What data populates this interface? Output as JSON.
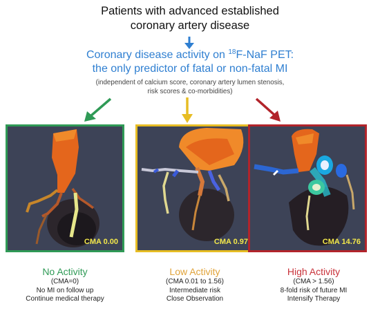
{
  "title": {
    "line1": "Patients with advanced established",
    "line2": "coronary artery disease"
  },
  "headline": {
    "line1_prefix": "Coronary disease activity on ",
    "isotope_mass": "18",
    "line1_suffix": "F-NaF PET:",
    "line2": "the only predictor of fatal or non-fatal MI"
  },
  "note": {
    "line1": "(independent of calcium score, coronary artery lumen stenosis,",
    "line2": "risk scores & co-morbidities)"
  },
  "panels": [
    {
      "cma_label": "CMA 0.00"
    },
    {
      "cma_label": "CMA 0.97"
    },
    {
      "cma_label": "CMA 14.76"
    }
  ],
  "categories": [
    {
      "name": "No Activity",
      "range": "(CMA=0)",
      "line1": "No MI on follow up",
      "line2": "Continue medical therapy"
    },
    {
      "name": "Low Activity",
      "range": "(CMA 0.01 to 1.56)",
      "line1": "Intermediate risk",
      "line2": "Close Observation"
    },
    {
      "name": "High Activity",
      "range": "(CMA > 1.56)",
      "line1": "8-fold risk of future MI",
      "line2": "Intensify Therapy"
    }
  ],
  "colors": {
    "blue": "#2f7fd1",
    "green": "#2f9a56",
    "yellow": "#e7bd24",
    "red": "#b2242b",
    "panel_bg": "#3d4357",
    "cma_text": "#f3e84a"
  }
}
